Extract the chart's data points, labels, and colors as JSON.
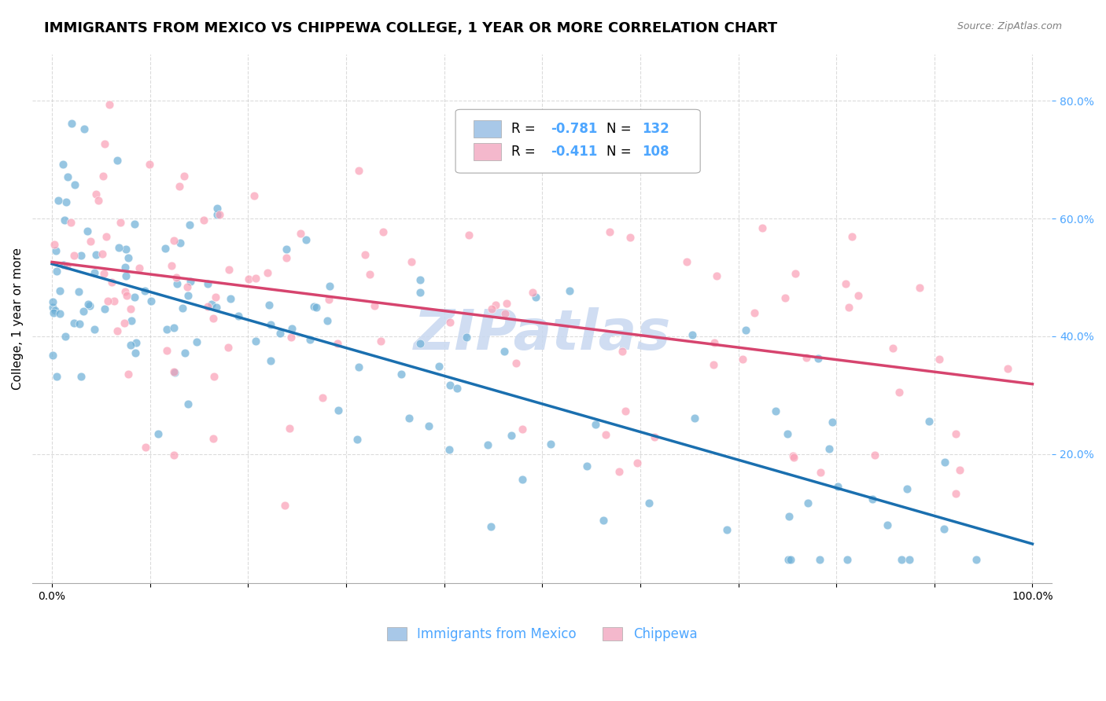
{
  "title": "IMMIGRANTS FROM MEXICO VS CHIPPEWA COLLEGE, 1 YEAR OR MORE CORRELATION CHART",
  "source": "Source: ZipAtlas.com",
  "ylabel": "College, 1 year or more",
  "legend_labels": [
    "Immigrants from Mexico",
    "Chippewa"
  ],
  "r_mexico": -0.781,
  "n_mexico": 132,
  "r_chippewa": -0.411,
  "n_chippewa": 108,
  "color_mexico": "#6baed6",
  "color_mexico_line": "#1a6faf",
  "color_chippewa": "#fa9fb5",
  "color_chippewa_line": "#d6446e",
  "color_legend_blue": "#a8c8e8",
  "color_legend_pink": "#f4b8cc",
  "watermark": "ZIPatlas",
  "watermark_color": "#c8d8f0",
  "background_color": "#ffffff",
  "grid_color": "#cccccc",
  "ytick_labels": [
    "20.0%",
    "40.0%",
    "60.0%",
    "80.0%"
  ],
  "ytick_values": [
    0.2,
    0.4,
    0.6,
    0.8
  ],
  "ytick_color": "#4da6ff",
  "title_fontsize": 13,
  "source_fontsize": 9,
  "axis_label_fontsize": 11,
  "tick_fontsize": 10,
  "legend_fontsize": 12
}
